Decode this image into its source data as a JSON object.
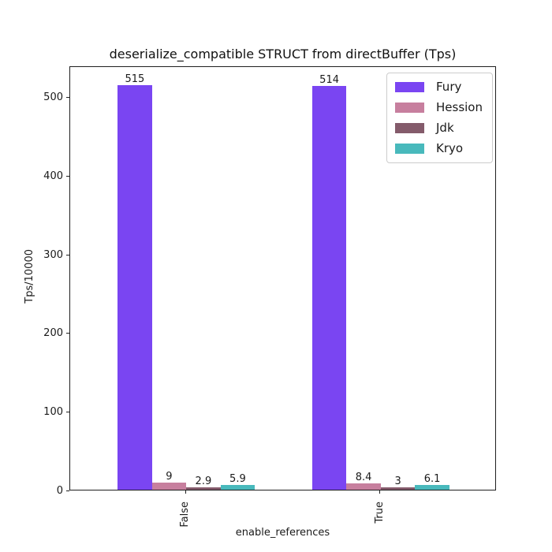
{
  "chart_data": {
    "type": "bar",
    "title": "deserialize_compatible STRUCT from directBuffer (Tps)",
    "xlabel": "enable_references",
    "ylabel": "Tps/10000",
    "categories": [
      "False",
      "True"
    ],
    "series": [
      {
        "name": "Fury",
        "color": "#7a45f2",
        "values": [
          515,
          514
        ],
        "labels": [
          "515",
          "514"
        ]
      },
      {
        "name": "Hession",
        "color": "#c77f9e",
        "values": [
          9,
          8.4
        ],
        "labels": [
          "9",
          "8.4"
        ]
      },
      {
        "name": "Jdk",
        "color": "#845b6b",
        "values": [
          2.9,
          3
        ],
        "labels": [
          "2.9",
          "3"
        ]
      },
      {
        "name": "Kryo",
        "color": "#48b9bc",
        "values": [
          5.9,
          6.1
        ],
        "labels": [
          "5.9",
          "6.1"
        ]
      }
    ],
    "ylim": [
      0,
      540
    ],
    "yticks": [
      0,
      100,
      200,
      300,
      400,
      500
    ],
    "xtick_rotation": 90,
    "grid": false,
    "legend": {
      "position": "upper right",
      "entries": [
        "Fury",
        "Hession",
        "Jdk",
        "Kryo"
      ]
    },
    "background": "#ffffff"
  }
}
